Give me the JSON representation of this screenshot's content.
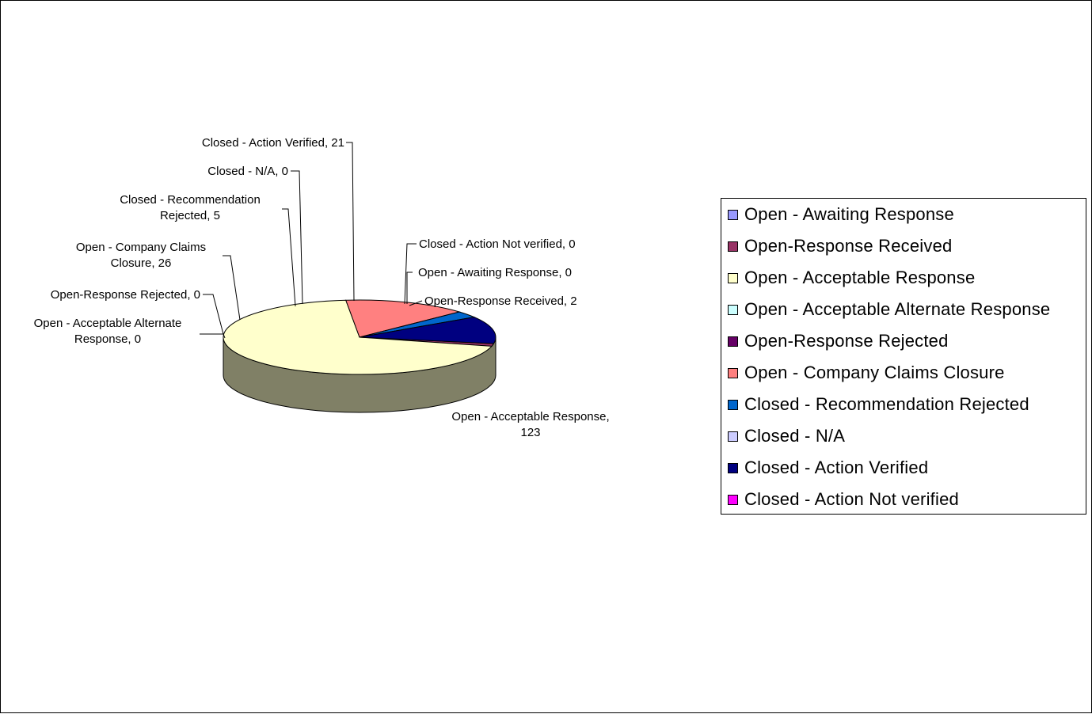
{
  "chart_data": {
    "type": "pie",
    "style": "3d-pie",
    "title": "",
    "series": [
      {
        "name": "Open - Awaiting Response",
        "value": 0,
        "color": "#9999FF",
        "label": "Open - Awaiting Response, 0"
      },
      {
        "name": "Open-Response Received",
        "value": 2,
        "color": "#993366",
        "label": "Open-Response Received, 2"
      },
      {
        "name": "Open - Acceptable Response",
        "value": 123,
        "color": "#FFFFCC",
        "label": "Open - Acceptable Response, 123"
      },
      {
        "name": "Open - Acceptable Alternate Response",
        "value": 0,
        "color": "#CCFFFF",
        "label": "Open - Acceptable Alternate Response, 0"
      },
      {
        "name": "Open-Response Rejected",
        "value": 0,
        "color": "#660066",
        "label": "Open-Response Rejected, 0"
      },
      {
        "name": "Open - Company Claims Closure",
        "value": 26,
        "color": "#FF8080",
        "label": "Open - Company Claims Closure, 26"
      },
      {
        "name": "Closed - Recommendation Rejected",
        "value": 5,
        "color": "#0066CC",
        "label": "Closed - Recommendation Rejected, 5"
      },
      {
        "name": "Closed - N/A",
        "value": 0,
        "color": "#CCCCFF",
        "label": "Closed - N/A, 0"
      },
      {
        "name": "Closed - Action Verified",
        "value": 21,
        "color": "#000080",
        "label": "Closed - Action Verified, 21"
      },
      {
        "name": "Closed - Action Not verified",
        "value": 0,
        "color": "#FF00FF",
        "label": "Closed - Action Not verified, 0"
      }
    ],
    "side_color": "#808066",
    "legend_position": "right"
  }
}
